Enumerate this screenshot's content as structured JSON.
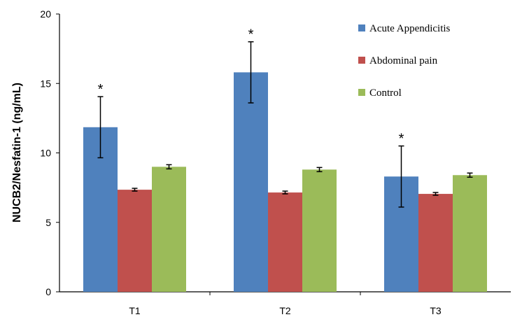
{
  "chart_data": {
    "type": "bar",
    "title": "",
    "xlabel": "",
    "ylabel": "NUCB2/Nesfatin-1  (ng/mL)",
    "ylim": [
      0,
      20
    ],
    "yticks": [
      "0",
      "5",
      "10",
      "15",
      "20"
    ],
    "categories": [
      "T1",
      "T2",
      "T3"
    ],
    "legend_position": "top-right",
    "grid": false,
    "series": [
      {
        "name": "Acute Appendicitis",
        "color": "#4F81BD",
        "values": [
          11.85,
          15.8,
          8.3
        ],
        "errors": [
          2.2,
          2.2,
          2.2
        ],
        "annotations": [
          "*",
          "*",
          "*"
        ]
      },
      {
        "name": "Abdominal pain",
        "color": "#C0504D",
        "values": [
          7.35,
          7.15,
          7.05
        ],
        "errors": [
          0.1,
          0.1,
          0.1
        ],
        "annotations": [
          "",
          "",
          ""
        ]
      },
      {
        "name": "Control",
        "color": "#9BBB59",
        "values": [
          9.0,
          8.8,
          8.4
        ],
        "errors": [
          0.15,
          0.15,
          0.15
        ],
        "annotations": [
          "",
          "",
          ""
        ]
      }
    ]
  }
}
